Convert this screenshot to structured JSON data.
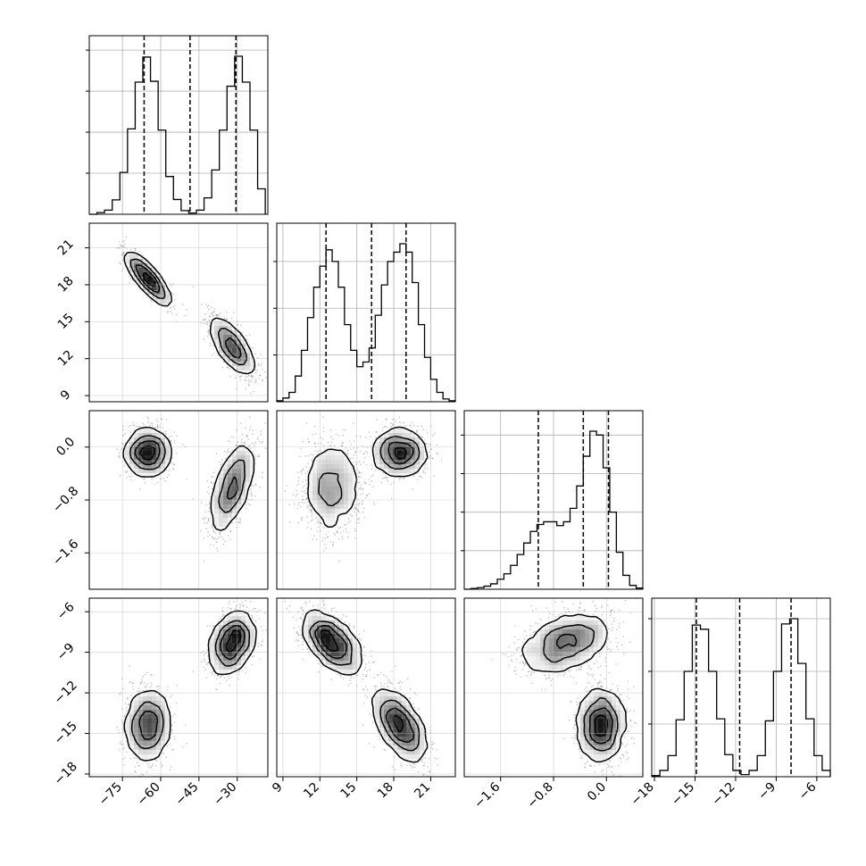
{
  "chart_data": {
    "type": "corner",
    "grid": true,
    "colors": {
      "line": "#000000",
      "grid": "#b0b0b0",
      "scatter": "#555555"
    },
    "variables": [
      {
        "range": [
          -88,
          -18
        ],
        "ticks": [
          -75,
          -60,
          -45,
          -30
        ],
        "tick_labels": [
          "−75",
          "−60",
          "−45",
          "−30"
        ],
        "quantiles": [
          -66.5,
          -48.5,
          -30.5
        ]
      },
      {
        "range": [
          8.5,
          23.0
        ],
        "ticks": [
          9,
          12,
          15,
          18,
          21
        ],
        "tick_labels": [
          "9",
          "12",
          "15",
          "18",
          "21"
        ],
        "quantiles": [
          12.5,
          16.2,
          19.0
        ]
      },
      {
        "range": [
          -2.15,
          0.55
        ],
        "ticks": [
          -1.6,
          -0.8,
          0.0
        ],
        "tick_labels": [
          "−1.6",
          "−0.8",
          "0.0"
        ],
        "quantiles": [
          -1.03,
          -0.35,
          0.03
        ]
      },
      {
        "range": [
          -18.2,
          -5.0
        ],
        "ticks": [
          -18,
          -15,
          -12,
          -9,
          -6
        ],
        "tick_labels": [
          "−18",
          "−15",
          "−12",
          "−9",
          "−6"
        ],
        "quantiles": [
          -14.9,
          -11.7,
          -7.9
        ]
      }
    ],
    "modes": [
      {
        "weight": 0.5,
        "mean": [
          -65,
          18.5,
          -0.08,
          -14.4
        ],
        "sd": [
          4.2,
          1.0,
          0.17,
          0.75
        ],
        "corr": [
          [
            0,
            1,
            -0.85
          ],
          [
            1,
            3,
            -0.9
          ]
        ]
      },
      {
        "weight": 0.5,
        "mean": [
          -32,
          13.0,
          -0.6,
          -8.3
        ],
        "sd": [
          4.2,
          1.15,
          0.33,
          0.75
        ],
        "corr": [
          [
            0,
            1,
            -0.7
          ],
          [
            0,
            2,
            0.6
          ],
          [
            1,
            3,
            -0.85
          ],
          [
            2,
            3,
            0.55
          ],
          [
            0,
            3,
            0.5
          ]
        ]
      }
    ],
    "histograms": [
      {
        "variable": 0,
        "bin_edges": [
          -88,
          -85,
          -82,
          -79,
          -76,
          -73,
          -70,
          -67,
          -64,
          -61,
          -58,
          -55,
          -52,
          -49,
          -46,
          -43,
          -40,
          -37,
          -34,
          -31,
          -28,
          -25,
          -22,
          -19
        ],
        "counts": [
          0,
          4,
          10,
          35,
          102,
          208,
          322,
          383,
          324,
          205,
          92,
          36,
          9,
          3,
          10,
          40,
          108,
          205,
          312,
          385,
          322,
          205,
          62
        ]
      },
      {
        "variable": 1,
        "bin_edges": [
          8.5,
          9.0,
          9.5,
          10.0,
          10.5,
          11.0,
          11.5,
          12.0,
          12.5,
          13.0,
          13.5,
          14.0,
          14.5,
          15.0,
          15.5,
          16.0,
          16.5,
          17.0,
          17.5,
          18.0,
          18.5,
          19.0,
          19.5,
          20.0,
          20.5,
          21.0,
          21.5,
          22.0,
          22.5,
          23.0
        ],
        "counts": [
          2,
          8,
          20,
          55,
          110,
          180,
          245,
          290,
          325,
          300,
          245,
          165,
          110,
          75,
          85,
          115,
          185,
          250,
          300,
          320,
          338,
          320,
          255,
          165,
          95,
          48,
          20,
          6,
          2
        ]
      },
      {
        "variable": 2,
        "bin_edges": [
          -2.15,
          -2.05,
          -1.95,
          -1.85,
          -1.75,
          -1.65,
          -1.55,
          -1.45,
          -1.35,
          -1.25,
          -1.15,
          -1.05,
          -0.95,
          -0.85,
          -0.75,
          -0.65,
          -0.55,
          -0.45,
          -0.35,
          -0.25,
          -0.15,
          -0.05,
          0.05,
          0.15,
          0.25,
          0.35,
          0.45,
          0.55
        ],
        "counts": [
          0,
          2,
          4,
          8,
          14,
          26,
          40,
          62,
          90,
          120,
          150,
          168,
          175,
          175,
          165,
          175,
          210,
          268,
          345,
          410,
          400,
          315,
          200,
          96,
          36,
          10,
          3
        ]
      },
      {
        "variable": 3,
        "bin_edges": [
          -18.2,
          -17.6,
          -17.0,
          -16.4,
          -15.8,
          -15.2,
          -14.6,
          -14.0,
          -13.4,
          -12.8,
          -12.2,
          -11.6,
          -11.0,
          -10.4,
          -9.8,
          -9.2,
          -8.6,
          -8.0,
          -7.4,
          -6.8,
          -6.2,
          -5.6,
          -5.0
        ],
        "counts": [
          2,
          12,
          40,
          108,
          200,
          288,
          280,
          200,
          110,
          42,
          12,
          4,
          12,
          40,
          106,
          200,
          290,
          300,
          215,
          110,
          40,
          12
        ]
      }
    ],
    "density_peaks": [
      {
        "x": 0,
        "y": 1,
        "at": [
          -65,
          18.2
        ]
      },
      {
        "x": 0,
        "y": 3,
        "at": [
          -65,
          -14.4
        ]
      },
      {
        "x": 1,
        "y": 3,
        "at": [
          19.0,
          -14.4
        ]
      },
      {
        "x": 2,
        "y": 3,
        "at": [
          -0.08,
          -14.4
        ]
      }
    ]
  }
}
